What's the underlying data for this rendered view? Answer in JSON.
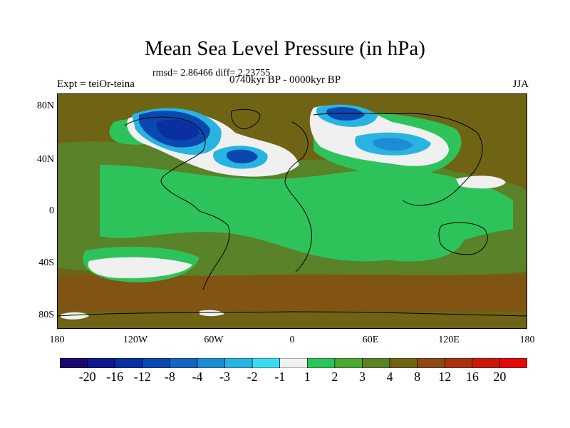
{
  "title": "Mean Sea Level Pressure (in hPa)",
  "stats": "rmsd= 2.86466 diff= 2.23755",
  "experiment": "Expt = teiOr-teina",
  "period": "0740kyr BP - 0000kyr BP",
  "season": "JJA",
  "y_ticks": [
    "80N",
    "40N",
    "0",
    "40S",
    "80S"
  ],
  "x_ticks": [
    "180",
    "120W",
    "60W",
    "0",
    "60E",
    "120E",
    "180"
  ],
  "colorbar": {
    "labels": [
      "-20",
      "-16",
      "-12",
      "-8",
      "-4",
      "-3",
      "-2",
      "-1",
      "1",
      "2",
      "3",
      "4",
      "8",
      "12",
      "16",
      "20"
    ],
    "colors": [
      "#1a0a6e",
      "#0d1a8c",
      "#0a2fa0",
      "#0a48b0",
      "#1464c0",
      "#1e8cd2",
      "#28b4e0",
      "#3cdcf0",
      "#f0f0f0",
      "#2ec25a",
      "#4ca832",
      "#5a8228",
      "#6e6414",
      "#8c4a12",
      "#a83210",
      "#c81a0a",
      "#e00a0a"
    ]
  },
  "colors": {
    "ocean_base": "#6e6414",
    "green": "#2ec25a",
    "mid_green": "#4ca832",
    "olive": "#5a8228",
    "white": "#f0f0f0",
    "brown": "#8c4a12"
  }
}
